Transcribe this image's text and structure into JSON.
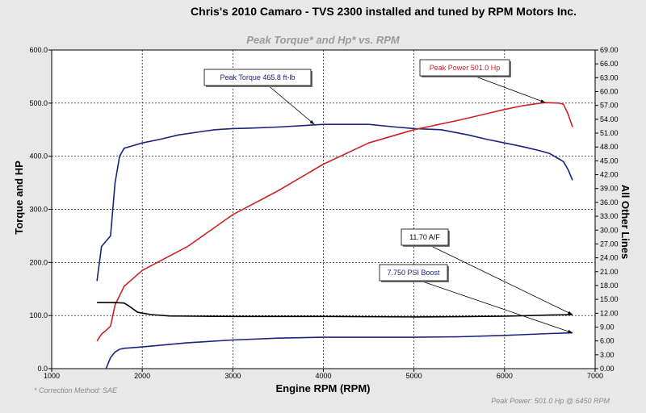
{
  "page": {
    "title": "Chris's 2010 Camaro - TVS 2300 installed and tuned by RPM Motors Inc.",
    "chart_title": "Peak Torque* and Hp* vs. RPM",
    "footer_left": "* Correction Method: SAE",
    "footer_right": "Peak Power: 501.0 Hp @ 6450 RPM"
  },
  "chart_data": {
    "type": "line",
    "title": "Peak Torque* and Hp* vs. RPM",
    "xlabel": "Engine RPM (RPM)",
    "ylabel_left": "Torque and HP",
    "ylabel_right": "All Other Lines",
    "xlim": [
      1000,
      7000
    ],
    "ylim_left": [
      0,
      600
    ],
    "ylim_right": [
      0,
      69
    ],
    "grid": true,
    "x_ticks": [
      "1000",
      "2000",
      "3000",
      "4000",
      "5000",
      "6000",
      "7000"
    ],
    "y_ticks_left": [
      "0.0",
      "100.0",
      "200.0",
      "300.0",
      "400.0",
      "500.0",
      "600.0"
    ],
    "y_ticks_right": [
      "0.00",
      "3.00",
      "6.00",
      "9.00",
      "12.00",
      "15.00",
      "18.00",
      "21.00",
      "24.00",
      "27.00",
      "30.00",
      "33.00",
      "36.00",
      "39.00",
      "42.00",
      "45.00",
      "48.00",
      "51.00",
      "54.00",
      "57.00",
      "60.00",
      "63.00",
      "66.00",
      "69.00"
    ],
    "series": [
      {
        "name": "Torque",
        "color": "#1a237e",
        "axis": "left",
        "x": [
          1500,
          1550,
          1600,
          1650,
          1700,
          1750,
          1800,
          1900,
          2000,
          2200,
          2400,
          2600,
          2800,
          3000,
          3200,
          3500,
          4000,
          4500,
          4800,
          5000,
          5300,
          5600,
          5800,
          6000,
          6200,
          6400,
          6500,
          6600,
          6650,
          6700,
          6750
        ],
        "y": [
          165,
          230,
          240,
          250,
          350,
          400,
          415,
          420,
          425,
          432,
          440,
          445,
          450,
          452,
          453,
          455,
          460,
          460,
          455,
          452,
          450,
          440,
          432,
          425,
          418,
          410,
          405,
          395,
          390,
          375,
          355
        ]
      },
      {
        "name": "Power",
        "color": "#cc2222",
        "axis": "left",
        "x": [
          1500,
          1550,
          1600,
          1650,
          1700,
          1800,
          2000,
          2500,
          3000,
          3500,
          4000,
          4500,
          5000,
          5500,
          5800,
          6000,
          6200,
          6400,
          6450,
          6600,
          6650,
          6700,
          6750
        ],
        "y": [
          52,
          65,
          72,
          80,
          120,
          155,
          185,
          230,
          290,
          335,
          385,
          425,
          450,
          468,
          480,
          488,
          495,
          500,
          501,
          500,
          498,
          480,
          455
        ]
      },
      {
        "name": "A/F",
        "color": "#000000",
        "axis": "right",
        "x": [
          1500,
          1600,
          1700,
          1800,
          1850,
          1950,
          2100,
          2300,
          2600,
          3000,
          4000,
          5000,
          5500,
          6000,
          6500,
          6750
        ],
        "y": [
          14.3,
          14.3,
          14.3,
          14.2,
          13.6,
          12.2,
          11.7,
          11.4,
          11.35,
          11.3,
          11.3,
          11.2,
          11.25,
          11.35,
          11.6,
          11.7
        ]
      },
      {
        "name": "Boost",
        "color": "#1a237e",
        "axis": "right",
        "x": [
          1600,
          1650,
          1700,
          1750,
          1800,
          2000,
          2500,
          3000,
          3500,
          4000,
          5000,
          5500,
          6000,
          6500,
          6750
        ],
        "y": [
          0,
          2.4,
          3.6,
          4.2,
          4.4,
          4.7,
          5.6,
          6.2,
          6.6,
          6.8,
          6.8,
          6.9,
          7.2,
          7.6,
          7.75
        ]
      }
    ],
    "annotations": [
      {
        "text": "Peak Torque  465.8 ft-lb",
        "color": "#1a237e",
        "target_x": 3900,
        "target_axis": "left",
        "target_y": 460
      },
      {
        "text": "Peak Power  501.0 Hp",
        "color": "#cc2222",
        "target_x": 6450,
        "target_axis": "left",
        "target_y": 501
      },
      {
        "text": "11.70 A/F",
        "color": "#000000",
        "target_x": 6750,
        "target_axis": "right",
        "target_y": 11.7
      },
      {
        "text": "7.750 PSI Boost",
        "color": "#1a237e",
        "target_x": 6750,
        "target_axis": "right",
        "target_y": 7.75
      }
    ]
  }
}
